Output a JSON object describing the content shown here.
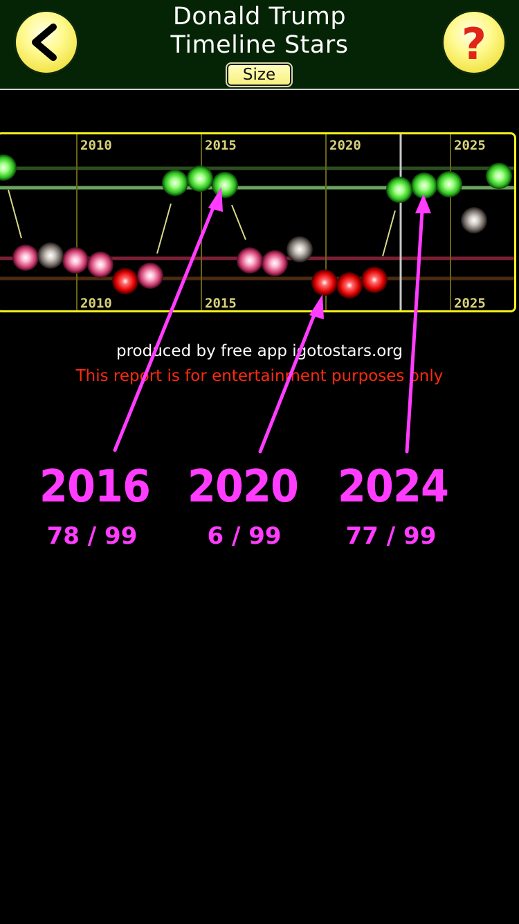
{
  "header": {
    "title_line1": "Donald Trump",
    "title_line2": "Timeline Stars",
    "size_label": "Size",
    "back_icon": "chevron-left-icon",
    "help_icon": "question-mark-icon"
  },
  "timeline": {
    "top_labels": [
      "2010",
      "2015",
      "2020",
      "2025"
    ],
    "bottom_labels": [
      "2010",
      "2015",
      "2025"
    ]
  },
  "footer": {
    "produced": "produced by free app igotostars.org",
    "disclaimer": "This report is for entertainment purposes only"
  },
  "annotations": [
    {
      "year": "2016",
      "score": "78 / 99"
    },
    {
      "year": "2020",
      "score": "6 / 99"
    },
    {
      "year": "2024",
      "score": "77 / 99"
    }
  ],
  "colors": {
    "header_bg": "#052405",
    "button_yellow": "#fffa90",
    "frame": "#f4f21a",
    "annotation": "#ff3cff",
    "disclaimer": "#ff2a10"
  }
}
